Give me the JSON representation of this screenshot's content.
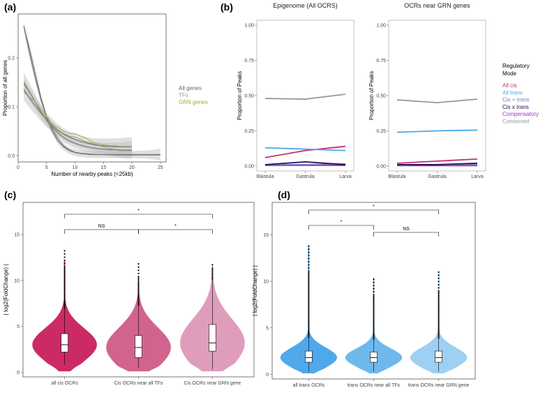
{
  "panels": {
    "a": {
      "label": "(a)"
    },
    "b": {
      "label": "(b)"
    },
    "c": {
      "label": "(c)"
    },
    "d": {
      "label": "(d)"
    }
  },
  "chart_data": [
    {
      "id": "a",
      "type": "line",
      "xlabel": "Number of nearby peaks (<25kb)",
      "ylabel": "Proportion of all genes",
      "xlim": [
        0,
        26
      ],
      "ylim": [
        -0.013,
        0.29
      ],
      "xticks": [
        {
          "v": 0,
          "t": "0"
        },
        {
          "v": 5,
          "t": "5"
        },
        {
          "v": 10,
          "t": "10"
        },
        {
          "v": 15,
          "t": "15"
        },
        {
          "v": 20,
          "t": "20"
        },
        {
          "v": 25,
          "t": "25"
        }
      ],
      "yticks": [
        {
          "v": 0,
          "t": "0.0"
        },
        {
          "v": 0.1,
          "t": "0.1"
        },
        {
          "v": 0.2,
          "t": "0.2"
        }
      ],
      "legend_position": "right",
      "series": [
        {
          "name": "All genes",
          "color": "#666666",
          "x": [
            1,
            2,
            3,
            4,
            5,
            6,
            7,
            8,
            9,
            10,
            11,
            12,
            13,
            14,
            15,
            16,
            17,
            18,
            19,
            20,
            21,
            22,
            23,
            24,
            25
          ],
          "y": [
            0.265,
            0.22,
            0.17,
            0.12,
            0.08,
            0.055,
            0.035,
            0.02,
            0.012,
            0.007,
            0.005,
            0.004,
            0.003,
            0.002,
            0.002,
            0.002,
            0.001,
            0.001,
            0.001,
            0.001,
            0.001,
            0.001,
            0.001,
            0.001,
            0.001
          ],
          "smooth": [
            0.265,
            0.21,
            0.16,
            0.115,
            0.078,
            0.05,
            0.03,
            0.018,
            0.01,
            0.006,
            0.004,
            0.003,
            0.002,
            0.002,
            0.002,
            0.002,
            0.002,
            0.002,
            0.002,
            0.002,
            0.002,
            0.002,
            0.002,
            0.002,
            0.002
          ],
          "band": [
            0.01,
            0.01,
            0.009,
            0.008,
            0.007,
            0.007,
            0.007,
            0.007,
            0.007,
            0.007,
            0.007,
            0.007,
            0.007,
            0.007,
            0.007,
            0.007,
            0.007,
            0.007,
            0.007,
            0.007,
            0.008,
            0.008,
            0.009,
            0.01,
            0.012
          ]
        },
        {
          "name": "TFs",
          "color": "#9b9b6e",
          "x": [
            1,
            2,
            3,
            4,
            5,
            6,
            7,
            8,
            9,
            10,
            11,
            12,
            13,
            14,
            15,
            16,
            17,
            18,
            19,
            20
          ],
          "y": [
            0.145,
            0.13,
            0.11,
            0.09,
            0.075,
            0.06,
            0.05,
            0.045,
            0.04,
            0.038,
            0.033,
            0.028,
            0.025,
            0.022,
            0.018,
            0.015,
            0.012,
            0.01,
            0.01,
            0.01
          ],
          "smooth": [
            0.15,
            0.13,
            0.11,
            0.09,
            0.072,
            0.058,
            0.046,
            0.037,
            0.03,
            0.025,
            0.021,
            0.018,
            0.016,
            0.014,
            0.013,
            0.012,
            0.012,
            0.011,
            0.011,
            0.011
          ],
          "band": [
            0.02,
            0.018,
            0.016,
            0.014,
            0.012,
            0.011,
            0.01,
            0.01,
            0.01,
            0.01,
            0.01,
            0.01,
            0.011,
            0.012,
            0.013,
            0.014,
            0.015,
            0.016,
            0.017,
            0.018
          ]
        },
        {
          "name": "GRN genes",
          "color": "#a6a832",
          "x": [
            1,
            2,
            3,
            4,
            5,
            6,
            7,
            8,
            9,
            10,
            11,
            12,
            13,
            14,
            15,
            16,
            17,
            18,
            19,
            20
          ],
          "y": [
            0.13,
            0.12,
            0.11,
            0.095,
            0.08,
            0.065,
            0.058,
            0.05,
            0.045,
            0.045,
            0.04,
            0.035,
            0.028,
            0.025,
            0.022,
            0.02,
            0.02,
            0.018,
            0.018,
            0.018
          ],
          "smooth": [
            0.135,
            0.118,
            0.102,
            0.087,
            0.073,
            0.062,
            0.052,
            0.044,
            0.038,
            0.033,
            0.029,
            0.026,
            0.023,
            0.021,
            0.02,
            0.019,
            0.018,
            0.018,
            0.018,
            0.018
          ],
          "band": [
            0.022,
            0.02,
            0.018,
            0.016,
            0.014,
            0.013,
            0.012,
            0.012,
            0.012,
            0.012,
            0.012,
            0.012,
            0.013,
            0.014,
            0.015,
            0.016,
            0.017,
            0.018,
            0.019,
            0.02
          ]
        }
      ]
    },
    {
      "id": "b",
      "type": "line",
      "ylabel": "Proportion of Peaks",
      "categories": [
        "Blastula",
        "Gastrula",
        "Larva"
      ],
      "ylim": [
        0,
        1
      ],
      "yticks": [
        {
          "v": 0,
          "t": "0.00"
        },
        {
          "v": 0.25,
          "t": "0.25"
        },
        {
          "v": 0.5,
          "t": "0.50"
        },
        {
          "v": 0.75,
          "t": "0.75"
        },
        {
          "v": 1,
          "t": "1.00"
        }
      ],
      "legend_title": "Regulatory\nMode",
      "legend": [
        {
          "name": "All cis",
          "color": "#c2306b"
        },
        {
          "name": "All trans",
          "color": "#4aa8e8"
        },
        {
          "name": "Cis + trans",
          "color": "#7b78d6"
        },
        {
          "name": "Cis x trans",
          "color": "#2a0a4f"
        },
        {
          "name": "Compensatory",
          "color": "#9a3ab5"
        },
        {
          "name": "Conserved",
          "color": "#999999"
        }
      ],
      "facets": [
        {
          "title": "Epigenome (All OCRS)",
          "series": [
            {
              "name": "Conserved",
              "color": "#999999",
              "values": [
                0.48,
                0.475,
                0.51
              ]
            },
            {
              "name": "All trans",
              "color": "#4aa8e8",
              "values": [
                0.13,
                0.12,
                0.11
              ]
            },
            {
              "name": "All cis",
              "color": "#c2306b",
              "values": [
                0.06,
                0.11,
                0.14
              ]
            },
            {
              "name": "Cis x trans",
              "color": "#2a0a4f",
              "values": [
                0.01,
                0.03,
                0.01
              ]
            },
            {
              "name": "Cis + trans",
              "color": "#7b78d6",
              "values": [
                0.01,
                0.01,
                0.015
              ]
            },
            {
              "name": "Compensatory",
              "color": "#9a3ab5",
              "values": [
                0.005,
                0.005,
                0.005
              ]
            }
          ]
        },
        {
          "title": "OCRs near GRN genes",
          "series": [
            {
              "name": "Conserved",
              "color": "#999999",
              "values": [
                0.47,
                0.45,
                0.475
              ]
            },
            {
              "name": "All trans",
              "color": "#4aa8e8",
              "values": [
                0.24,
                0.25,
                0.255
              ]
            },
            {
              "name": "All cis",
              "color": "#c2306b",
              "values": [
                0.02,
                0.035,
                0.05
              ]
            },
            {
              "name": "Cis x trans",
              "color": "#2a0a4f",
              "values": [
                0.01,
                0.01,
                0.02
              ]
            },
            {
              "name": "Cis + trans",
              "color": "#7b78d6",
              "values": [
                0.005,
                0.01,
                0.01
              ]
            },
            {
              "name": "Compensatory",
              "color": "#9a3ab5",
              "values": [
                0.003,
                0.003,
                0.003
              ]
            }
          ]
        }
      ]
    },
    {
      "id": "c",
      "type": "violin",
      "ylabel": "| log2(FoldChange) |",
      "ylim": [
        -0.5,
        18.5
      ],
      "yticks": [
        {
          "v": 0,
          "t": "0"
        },
        {
          "v": 5,
          "t": "5"
        },
        {
          "v": 10,
          "t": "10"
        },
        {
          "v": 15,
          "t": "15"
        }
      ],
      "categories": [
        "all cis OCRs",
        "Cis OCRs near all TFs",
        "Cis OCRs near GRN gene"
      ],
      "colors": [
        "#cc2a66",
        "#d2638e",
        "#df9dbc"
      ],
      "max": [
        12.2,
        9.8,
        11.6
      ],
      "outliers_top": [
        13.4,
        11.8,
        11.7
      ],
      "boxes": [
        {
          "q1": 2.2,
          "median": 3.0,
          "q3": 4.2,
          "wlo": 0.8,
          "whi": 7.0
        },
        {
          "q1": 1.6,
          "median": 2.7,
          "q3": 4.0,
          "wlo": 0.5,
          "whi": 7.3
        },
        {
          "q1": 2.3,
          "median": 3.2,
          "q3": 5.2,
          "wlo": 0.3,
          "whi": 10.2
        }
      ],
      "significance": [
        {
          "from": 0,
          "to": 1,
          "label": "NS"
        },
        {
          "from": 1,
          "to": 2,
          "label": "*"
        },
        {
          "from": 0,
          "to": 2,
          "label": "*"
        }
      ]
    },
    {
      "id": "d",
      "type": "violin",
      "ylabel": "| log2(FoldChange) |",
      "ylim": [
        -0.5,
        18.5
      ],
      "yticks": [
        {
          "v": 0,
          "t": "0"
        },
        {
          "v": 5,
          "t": "5"
        },
        {
          "v": 10,
          "t": "10"
        },
        {
          "v": 15,
          "t": "15"
        }
      ],
      "categories": [
        "all trans OCRs",
        "trans OCRs near all TFs",
        "trans OCRs near GRN gene"
      ],
      "colors": [
        "#4fa8ea",
        "#6fb8ec",
        "#9dd0f2"
      ],
      "max": [
        13.8,
        10.4,
        11.0
      ],
      "outliers_top": [
        13.8,
        10.4,
        11.0
      ],
      "boxes": [
        {
          "q1": 1.3,
          "median": 1.8,
          "q3": 2.5,
          "wlo": 0.3,
          "whi": 4.0
        },
        {
          "q1": 1.3,
          "median": 1.8,
          "q3": 2.4,
          "wlo": 0.3,
          "whi": 3.8
        },
        {
          "q1": 1.3,
          "median": 1.8,
          "q3": 2.5,
          "wlo": 0.3,
          "whi": 3.9
        }
      ],
      "significance": [
        {
          "from": 0,
          "to": 1,
          "label": "*"
        },
        {
          "from": 1,
          "to": 2,
          "label": "NS"
        },
        {
          "from": 0,
          "to": 2,
          "label": "*"
        }
      ]
    }
  ]
}
